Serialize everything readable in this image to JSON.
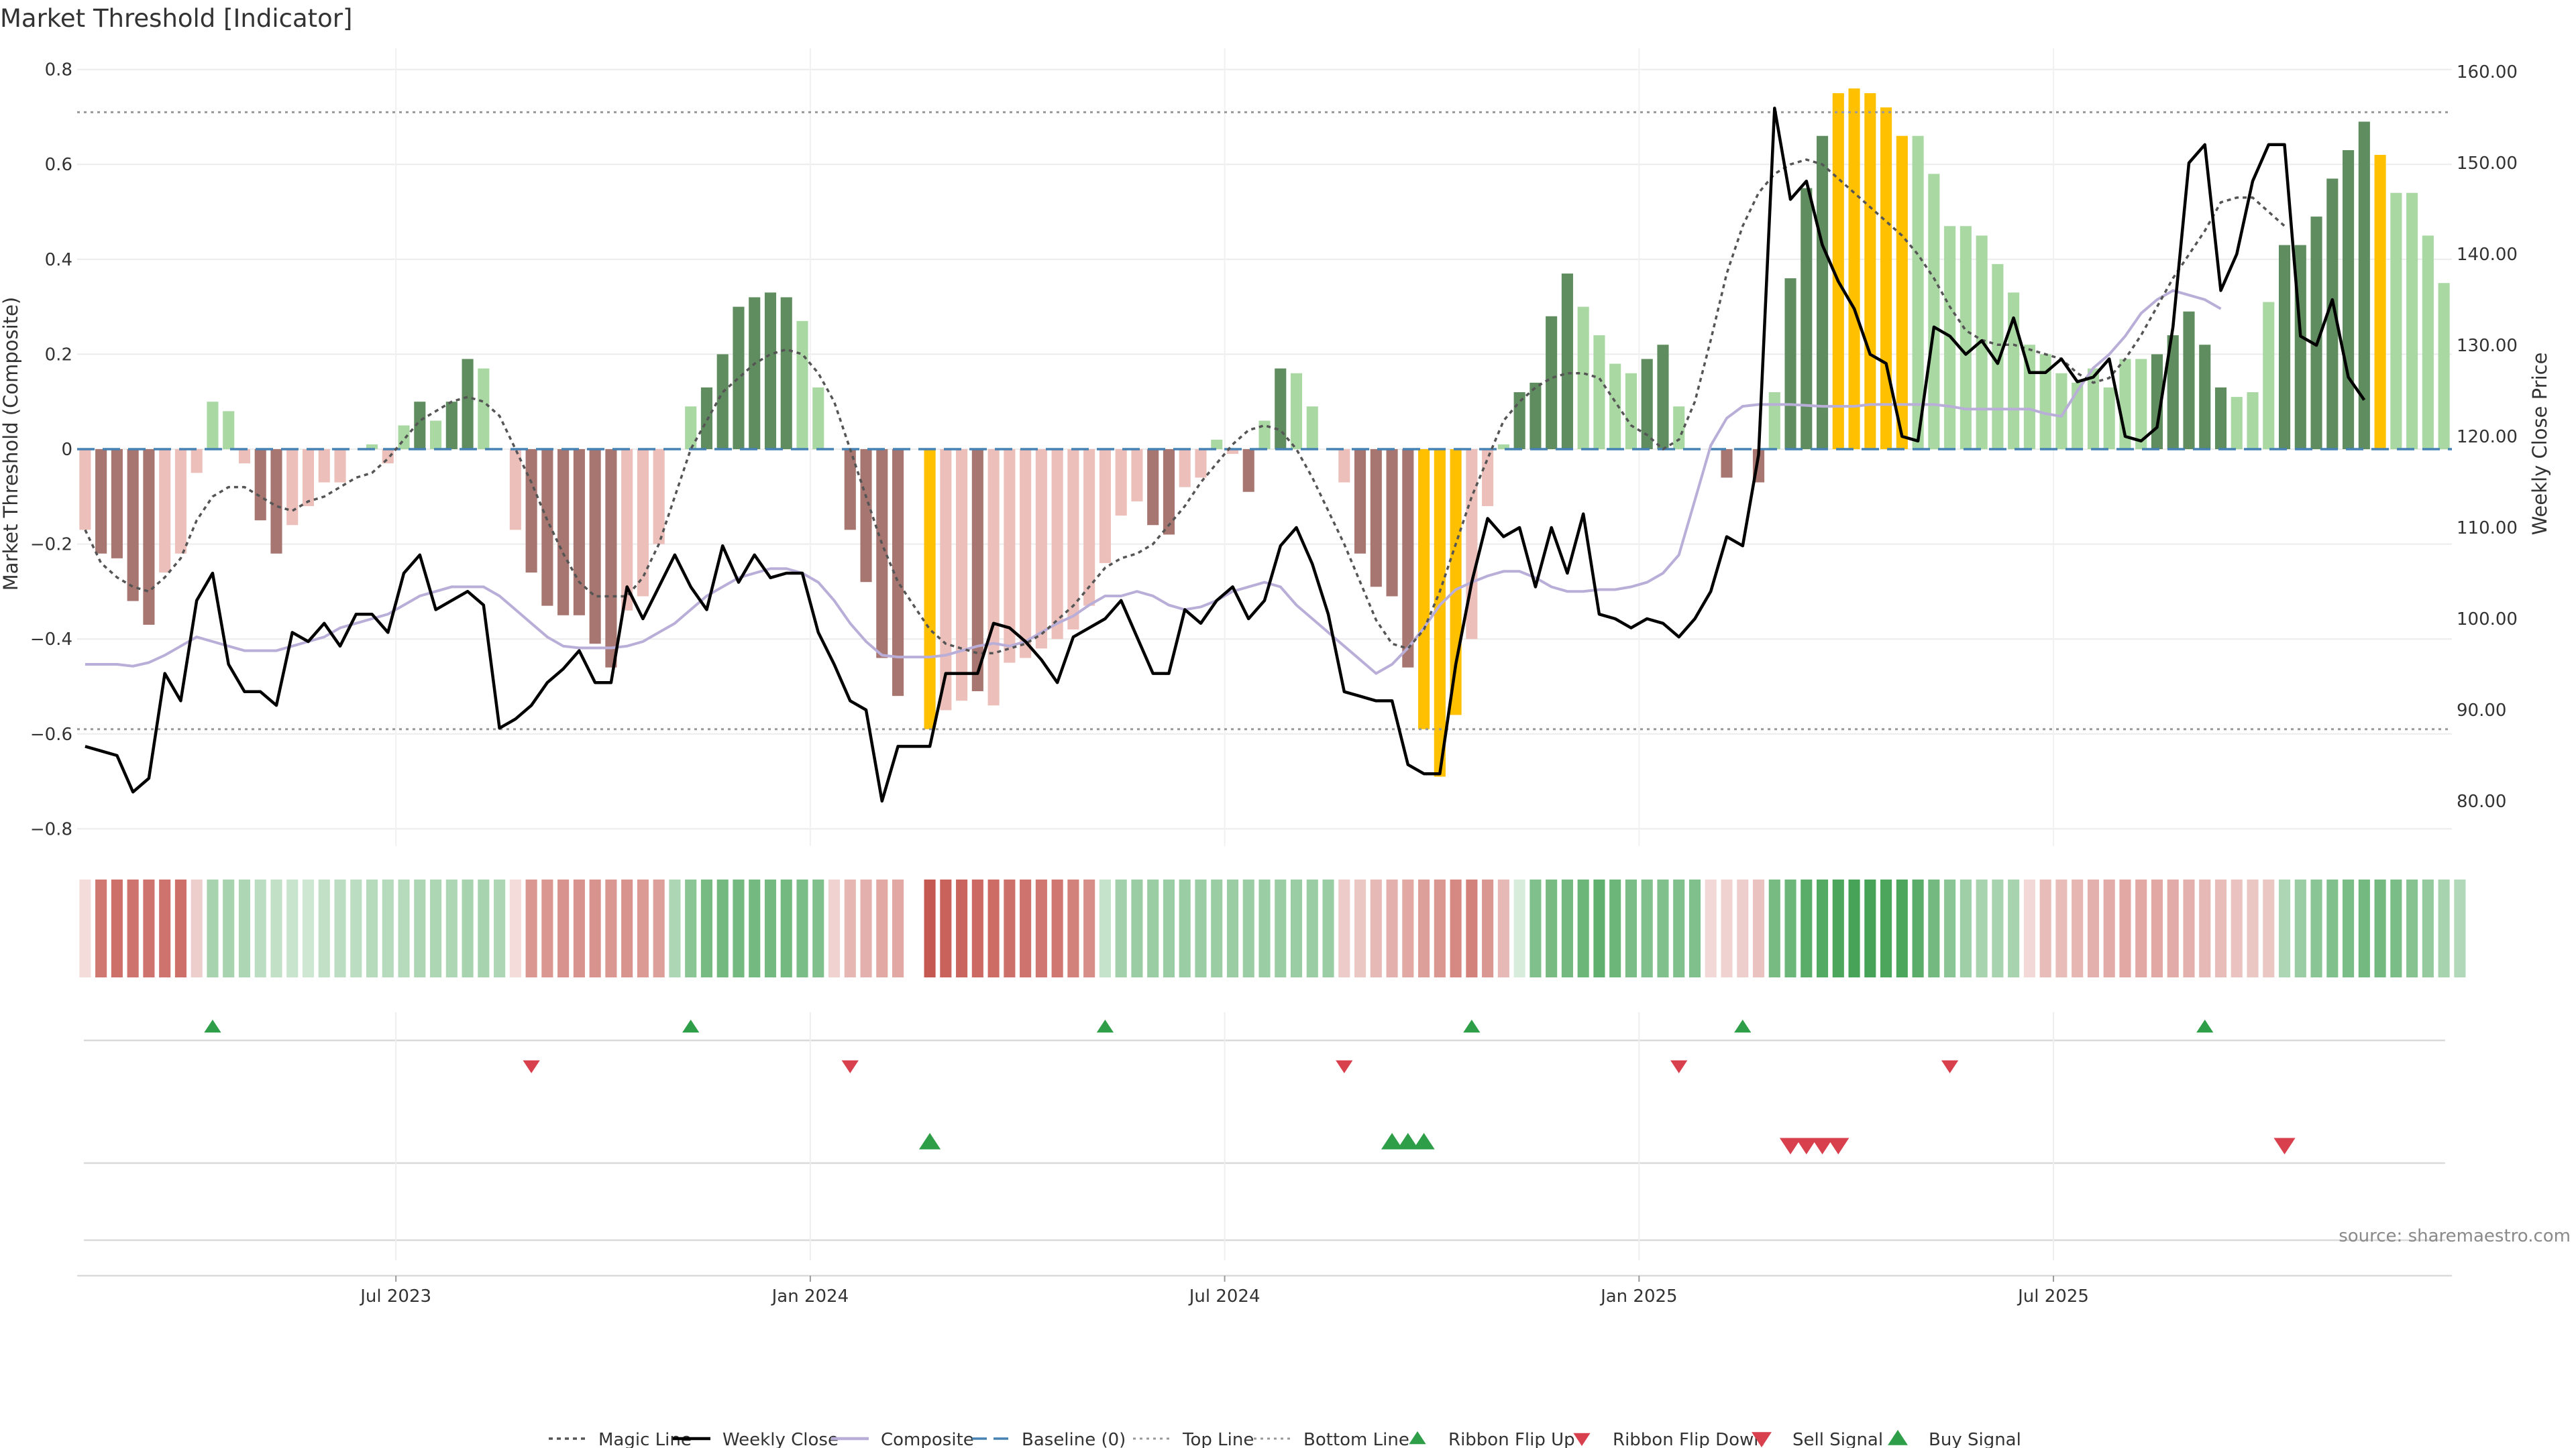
{
  "title": "Market Threshold [Indicator]",
  "source": "source: sharemaestro.com",
  "colors": {
    "strong_pos": "#5f8d5f",
    "weak_pos": "#a9d8a3",
    "strong_neg": "#a87670",
    "weak_neg": "#ecbfba",
    "extreme": "#ffc000",
    "magic": "#555555",
    "close": "#000000",
    "composite": "#b9aed8",
    "baseline": "#4682b4",
    "limit": "#888888",
    "buy": "#2e9e48",
    "sell": "#d9404e"
  },
  "legend": [
    {
      "label": "Magic Line",
      "style": "magic"
    },
    {
      "label": "Weekly Close",
      "style": "close"
    },
    {
      "label": "Composite",
      "style": "composite"
    },
    {
      "label": "Baseline (0)",
      "style": "baseline"
    },
    {
      "label": "Top Line",
      "style": "topline"
    },
    {
      "label": "Bottom Line",
      "style": "bottomline"
    },
    {
      "label": "Ribbon Flip Up",
      "style": "flipup"
    },
    {
      "label": "Ribbon Flip Down",
      "style": "flipdown"
    },
    {
      "label": "Sell Signal",
      "style": "sell"
    },
    {
      "label": "Buy Signal",
      "style": "buy"
    }
  ],
  "chart_data": {
    "type": "bar",
    "ylabel": "Market Threshold (Composite)",
    "y2label": "Weekly Close Price",
    "ylim": [
      -0.82,
      0.85
    ],
    "y2lim": [
      75.0,
      162.5
    ],
    "yticks": [
      0.8,
      0.6,
      0.4,
      0.2,
      0,
      -0.2,
      -0.4,
      -0.6,
      -0.8
    ],
    "ytick_labels": [
      "0.8",
      "0.6",
      "0.4",
      "0.2",
      "0",
      "−0.2",
      "−0.4",
      "−0.6",
      "−0.8"
    ],
    "y2ticks": [
      160,
      150,
      140,
      130,
      120,
      110,
      100,
      90,
      80
    ],
    "y2tick_labels": [
      "160.00",
      "150.00",
      "140.00",
      "130.00",
      "120.00",
      "110.00",
      "100.00",
      "90.00",
      "80.00"
    ],
    "xticks": [
      {
        "week": 20,
        "label": "Jul 2023"
      },
      {
        "week": 46,
        "label": "Jan 2024"
      },
      {
        "week": 72,
        "label": "Jul 2024"
      },
      {
        "week": 98,
        "label": "Jan 2025"
      },
      {
        "week": 124,
        "label": "Jul 2025"
      }
    ],
    "top_line": 0.71,
    "bottom_line": -0.59,
    "baseline": 0,
    "composite": [
      -0.17,
      -0.22,
      -0.23,
      -0.32,
      -0.37,
      -0.26,
      -0.22,
      -0.05,
      0.1,
      0.08,
      -0.03,
      -0.15,
      -0.22,
      -0.16,
      -0.12,
      -0.07,
      -0.07,
      0,
      0.01,
      -0.03,
      0.05,
      0.1,
      0.06,
      0.1,
      0.19,
      0.17,
      0,
      -0.17,
      -0.26,
      -0.33,
      -0.35,
      -0.35,
      -0.41,
      -0.46,
      -0.34,
      -0.31,
      -0.2,
      0,
      0.09,
      0.13,
      0.2,
      0.3,
      0.32,
      0.33,
      0.32,
      0.27,
      0.13,
      0,
      -0.17,
      -0.28,
      -0.44,
      -0.52,
      0,
      -0.59,
      -0.55,
      -0.53,
      -0.51,
      -0.54,
      -0.45,
      -0.44,
      -0.42,
      -0.4,
      -0.38,
      -0.33,
      -0.24,
      -0.14,
      -0.11,
      -0.16,
      -0.18,
      -0.08,
      -0.06,
      0.02,
      -0.01,
      -0.09,
      0.06,
      0.17,
      0.16,
      0.09,
      0,
      -0.07,
      -0.22,
      -0.29,
      -0.31,
      -0.46,
      -0.59,
      -0.69,
      -0.56,
      -0.4,
      -0.12,
      0.01,
      0.12,
      0.14,
      0.28,
      0.37,
      0.3,
      0.24,
      0.18,
      0.16,
      0.19,
      0.22,
      0.09,
      0,
      0,
      -0.06,
      0,
      -0.07,
      0.12,
      0.36,
      0.55,
      0.66,
      0.75,
      0.76,
      0.75,
      0.72,
      0.66,
      0.66,
      0.58,
      0.47,
      0.47,
      0.45,
      0.39,
      0.33,
      0.22,
      0.2,
      0.16,
      0.14,
      0.17,
      0.13,
      0.19,
      0.19,
      0.2,
      0.24,
      0.29,
      0.22,
      0.13,
      0.11,
      0.12,
      0.31,
      0.43,
      0.43,
      0.49,
      0.57,
      0.63,
      0.69,
      0.62,
      0.54,
      0.54,
      0.45,
      0.35
    ],
    "bar_class": [
      "wn",
      "sn",
      "sn",
      "sn",
      "sn",
      "wn",
      "wn",
      "wn",
      "wp",
      "wp",
      "wn",
      "sn",
      "sn",
      "wn",
      "wn",
      "wn",
      "wn",
      "wn",
      "wp",
      "wn",
      "wp",
      "sp",
      "wp",
      "sp",
      "sp",
      "wp",
      "wn",
      "wn",
      "sn",
      "sn",
      "sn",
      "sn",
      "sn",
      "sn",
      "wn",
      "wn",
      "wn",
      "wp",
      "wp",
      "sp",
      "sp",
      "sp",
      "sp",
      "sp",
      "sp",
      "wp",
      "wp",
      "wn",
      "sn",
      "sn",
      "sn",
      "sn",
      "wn",
      "x",
      "wn",
      "wn",
      "sn",
      "wn",
      "wn",
      "wn",
      "wn",
      "wn",
      "wn",
      "wn",
      "wn",
      "wn",
      "wn",
      "sn",
      "sn",
      "wn",
      "wn",
      "wp",
      "wn",
      "sn",
      "wp",
      "sp",
      "wp",
      "wp",
      "wn",
      "wn",
      "sn",
      "sn",
      "sn",
      "sn",
      "x",
      "x",
      "x",
      "wn",
      "wn",
      "wp",
      "sp",
      "sp",
      "sp",
      "sp",
      "wp",
      "wp",
      "wp",
      "wp",
      "sp",
      "sp",
      "wp",
      "wn",
      "wn",
      "sn",
      "wn",
      "sn",
      "wp",
      "sp",
      "sp",
      "sp",
      "x",
      "x",
      "x",
      "x",
      "x",
      "wp",
      "wp",
      "wp",
      "wp",
      "wp",
      "wp",
      "wp",
      "wp",
      "wp",
      "wp",
      "wp",
      "wp",
      "wp",
      "wp",
      "wp",
      "sp",
      "sp",
      "sp",
      "sp",
      "sp",
      "wp",
      "wp",
      "wp",
      "sp",
      "sp",
      "sp",
      "sp",
      "sp",
      "sp",
      "x",
      "wp",
      "wp",
      "wp",
      "wp",
      "wp"
    ],
    "magic": [
      -0.17,
      -0.24,
      -0.27,
      -0.29,
      -0.3,
      -0.27,
      -0.23,
      -0.15,
      -0.1,
      -0.08,
      -0.08,
      -0.1,
      -0.12,
      -0.13,
      -0.11,
      -0.1,
      -0.08,
      -0.06,
      -0.05,
      -0.02,
      0.02,
      0.06,
      0.08,
      0.1,
      0.11,
      0.1,
      0.07,
      0,
      -0.07,
      -0.15,
      -0.22,
      -0.28,
      -0.31,
      -0.31,
      -0.31,
      -0.27,
      -0.2,
      -0.1,
      0,
      0.06,
      0.12,
      0.15,
      0.18,
      0.2,
      0.21,
      0.2,
      0.16,
      0.1,
      0,
      -0.1,
      -0.2,
      -0.28,
      -0.33,
      -0.38,
      -0.41,
      -0.42,
      -0.43,
      -0.43,
      -0.42,
      -0.41,
      -0.39,
      -0.36,
      -0.33,
      -0.29,
      -0.25,
      -0.23,
      -0.22,
      -0.2,
      -0.16,
      -0.12,
      -0.07,
      -0.03,
      0.01,
      0.04,
      0.05,
      0.04,
      0,
      -0.06,
      -0.13,
      -0.2,
      -0.28,
      -0.36,
      -0.41,
      -0.42,
      -0.38,
      -0.3,
      -0.2,
      -0.1,
      -0.02,
      0.06,
      0.1,
      0.13,
      0.15,
      0.16,
      0.16,
      0.15,
      0.1,
      0.05,
      0.03,
      0,
      0.02,
      0.1,
      0.23,
      0.37,
      0.47,
      0.54,
      0.58,
      0.6,
      0.61,
      0.6,
      0.57,
      0.54,
      0.51,
      0.48,
      0.45,
      0.41,
      0.36,
      0.3,
      0.25,
      0.23,
      0.22,
      0.22,
      0.21,
      0.2,
      0.19,
      0.16,
      0.14,
      0.15,
      0.19,
      0.24,
      0.3,
      0.36,
      0.41,
      0.46,
      0.52,
      0.53,
      0.53,
      0.5,
      0.47
    ],
    "composite_line": [
      95,
      95,
      95,
      94.8,
      95.2,
      96,
      97,
      98,
      97.5,
      97,
      96.5,
      96.5,
      96.5,
      97,
      97.5,
      98,
      99,
      99.5,
      100,
      100.5,
      101.5,
      102.5,
      103,
      103.5,
      103.5,
      103.5,
      102.5,
      101,
      99.5,
      98,
      97,
      96.8,
      96.8,
      96.8,
      97,
      97.5,
      98.5,
      99.5,
      101,
      102.5,
      103.5,
      104.5,
      105,
      105.5,
      105.5,
      105,
      104,
      102,
      99.5,
      97.5,
      96,
      95.8,
      95.8,
      95.8,
      96,
      96.5,
      97,
      97.3,
      97,
      97.5,
      98.5,
      99.5,
      100.3,
      101.5,
      102.5,
      102.5,
      103,
      102.5,
      101.5,
      101,
      101.3,
      102,
      103,
      103.5,
      104,
      103.5,
      101.5,
      100,
      98.5,
      97,
      95.5,
      94,
      95,
      96.8,
      99,
      101.5,
      103.2,
      104,
      104.7,
      105.2,
      105.2,
      104.5,
      103.5,
      103,
      103,
      103.2,
      103.2,
      103.5,
      104,
      105,
      107,
      113,
      119,
      122,
      123.3,
      123.5,
      123.5,
      123.5,
      123.4,
      123.3,
      123.3,
      123.3,
      123.5,
      123.5,
      123.5,
      123.5,
      123.5,
      123.3,
      123,
      123,
      123,
      123,
      123,
      122.5,
      122.2,
      125,
      127.5,
      129,
      131,
      133.5,
      135,
      136,
      135.5,
      135,
      134
    ],
    "close": [
      86,
      85.5,
      85,
      81,
      82.5,
      94,
      91,
      102,
      105,
      95,
      92,
      92,
      90.5,
      98.5,
      97.5,
      99.5,
      97,
      100.5,
      100.5,
      98.5,
      105,
      107,
      101,
      102,
      103,
      101.5,
      88,
      89,
      90.5,
      93,
      94.5,
      96.5,
      93,
      93,
      103.5,
      100,
      103.5,
      107,
      103.5,
      101,
      108,
      104,
      107,
      104.5,
      105,
      105,
      98.5,
      95,
      91,
      90,
      80,
      86,
      86,
      86,
      94,
      94,
      94,
      99.5,
      99,
      97.5,
      95.5,
      93,
      98,
      99,
      100,
      102,
      98,
      94,
      94,
      101,
      99.5,
      102,
      103.5,
      100,
      102,
      108,
      110,
      106,
      100.5,
      92,
      91.5,
      91,
      91,
      84,
      83,
      83,
      95,
      104,
      111,
      109,
      110,
      103.5,
      110,
      105,
      111.5,
      100.5,
      100,
      99,
      100,
      99.5,
      98,
      100,
      103,
      109,
      108,
      118,
      156,
      146,
      148,
      141,
      137,
      134,
      129,
      128,
      120,
      119.5,
      132,
      131,
      129,
      130.5,
      128,
      133,
      127,
      127,
      128.5,
      126,
      126.5,
      128.5,
      120,
      119.5,
      121,
      132,
      150,
      152,
      136,
      140,
      148,
      152,
      152,
      131,
      130,
      135,
      126.5,
      124
    ]
  },
  "ribbon": {
    "values": [
      0.2,
      0.78,
      0.82,
      0.8,
      0.8,
      0.8,
      0.82,
      0.28,
      0.45,
      0.45,
      0.42,
      0.35,
      0.32,
      0.28,
      0.25,
      0.32,
      0.35,
      0.35,
      0.38,
      0.38,
      0.38,
      0.42,
      0.42,
      0.42,
      0.45,
      0.45,
      0.42,
      0.2,
      0.6,
      0.6,
      0.62,
      0.62,
      0.62,
      0.6,
      0.62,
      0.58,
      0.55,
      0.42,
      0.6,
      0.7,
      0.72,
      0.72,
      0.72,
      0.72,
      0.72,
      0.68,
      0.65,
      0.25,
      0.42,
      0.45,
      0.5,
      0.5,
      null,
      0.95,
      0.9,
      0.88,
      0.86,
      0.84,
      0.82,
      0.8,
      0.78,
      0.78,
      0.72,
      0.65,
      0.3,
      0.48,
      0.52,
      0.52,
      0.52,
      0.52,
      0.52,
      0.52,
      0.52,
      0.52,
      0.52,
      0.52,
      0.52,
      0.52,
      0.52,
      0.3,
      0.32,
      0.4,
      0.45,
      0.5,
      0.55,
      0.6,
      0.68,
      0.72,
      0.6,
      0.4,
      0.2,
      0.65,
      0.7,
      0.72,
      0.75,
      0.82,
      0.75,
      0.68,
      0.65,
      0.65,
      0.65,
      0.65,
      0.22,
      0.25,
      0.28,
      0.35,
      0.7,
      0.75,
      0.85,
      0.88,
      0.92,
      0.95,
      0.95,
      0.92,
      0.92,
      0.85,
      0.72,
      0.6,
      0.5,
      0.45,
      0.45,
      0.45,
      0.22,
      0.38,
      0.38,
      0.42,
      0.45,
      0.48,
      0.5,
      0.5,
      0.5,
      0.48,
      0.45,
      0.4,
      0.38,
      0.35,
      0.32,
      0.32,
      0.42,
      0.52,
      0.6,
      0.65,
      0.68,
      0.72,
      0.72,
      0.68,
      0.62,
      0.55,
      0.45,
      0.4
    ],
    "signs": [
      -1,
      -1,
      -1,
      -1,
      -1,
      -1,
      -1,
      -1,
      1,
      1,
      1,
      1,
      1,
      1,
      1,
      1,
      1,
      1,
      1,
      1,
      1,
      1,
      1,
      1,
      1,
      1,
      1,
      -1,
      -1,
      -1,
      -1,
      -1,
      -1,
      -1,
      -1,
      -1,
      -1,
      1,
      1,
      1,
      1,
      1,
      1,
      1,
      1,
      1,
      1,
      -1,
      -1,
      -1,
      -1,
      -1,
      0,
      -1,
      -1,
      -1,
      -1,
      -1,
      -1,
      -1,
      -1,
      -1,
      -1,
      -1,
      1,
      1,
      1,
      1,
      1,
      1,
      1,
      1,
      1,
      1,
      1,
      1,
      1,
      1,
      1,
      -1,
      -1,
      -1,
      -1,
      -1,
      -1,
      -1,
      -1,
      -1,
      -1,
      -1,
      1,
      1,
      1,
      1,
      1,
      1,
      1,
      1,
      1,
      1,
      1,
      1,
      -1,
      -1,
      -1,
      -1,
      1,
      1,
      1,
      1,
      1,
      1,
      1,
      1,
      1,
      1,
      1,
      1,
      1,
      1,
      1,
      1,
      -1,
      -1,
      -1,
      -1,
      -1,
      -1,
      -1,
      -1,
      -1,
      -1,
      -1,
      -1,
      -1,
      -1,
      -1,
      -1,
      1,
      1,
      1,
      1,
      1,
      1,
      1,
      1,
      1,
      1,
      1,
      1
    ]
  },
  "flip_up_weeks": [
    8,
    38,
    64,
    87,
    104,
    133
  ],
  "flip_down_weeks": [
    28,
    48,
    79,
    100,
    117
  ],
  "buy_signal_weeks": [
    53,
    82,
    83,
    84
  ],
  "sell_signal_weeks": [
    107,
    108,
    109,
    110,
    138
  ]
}
